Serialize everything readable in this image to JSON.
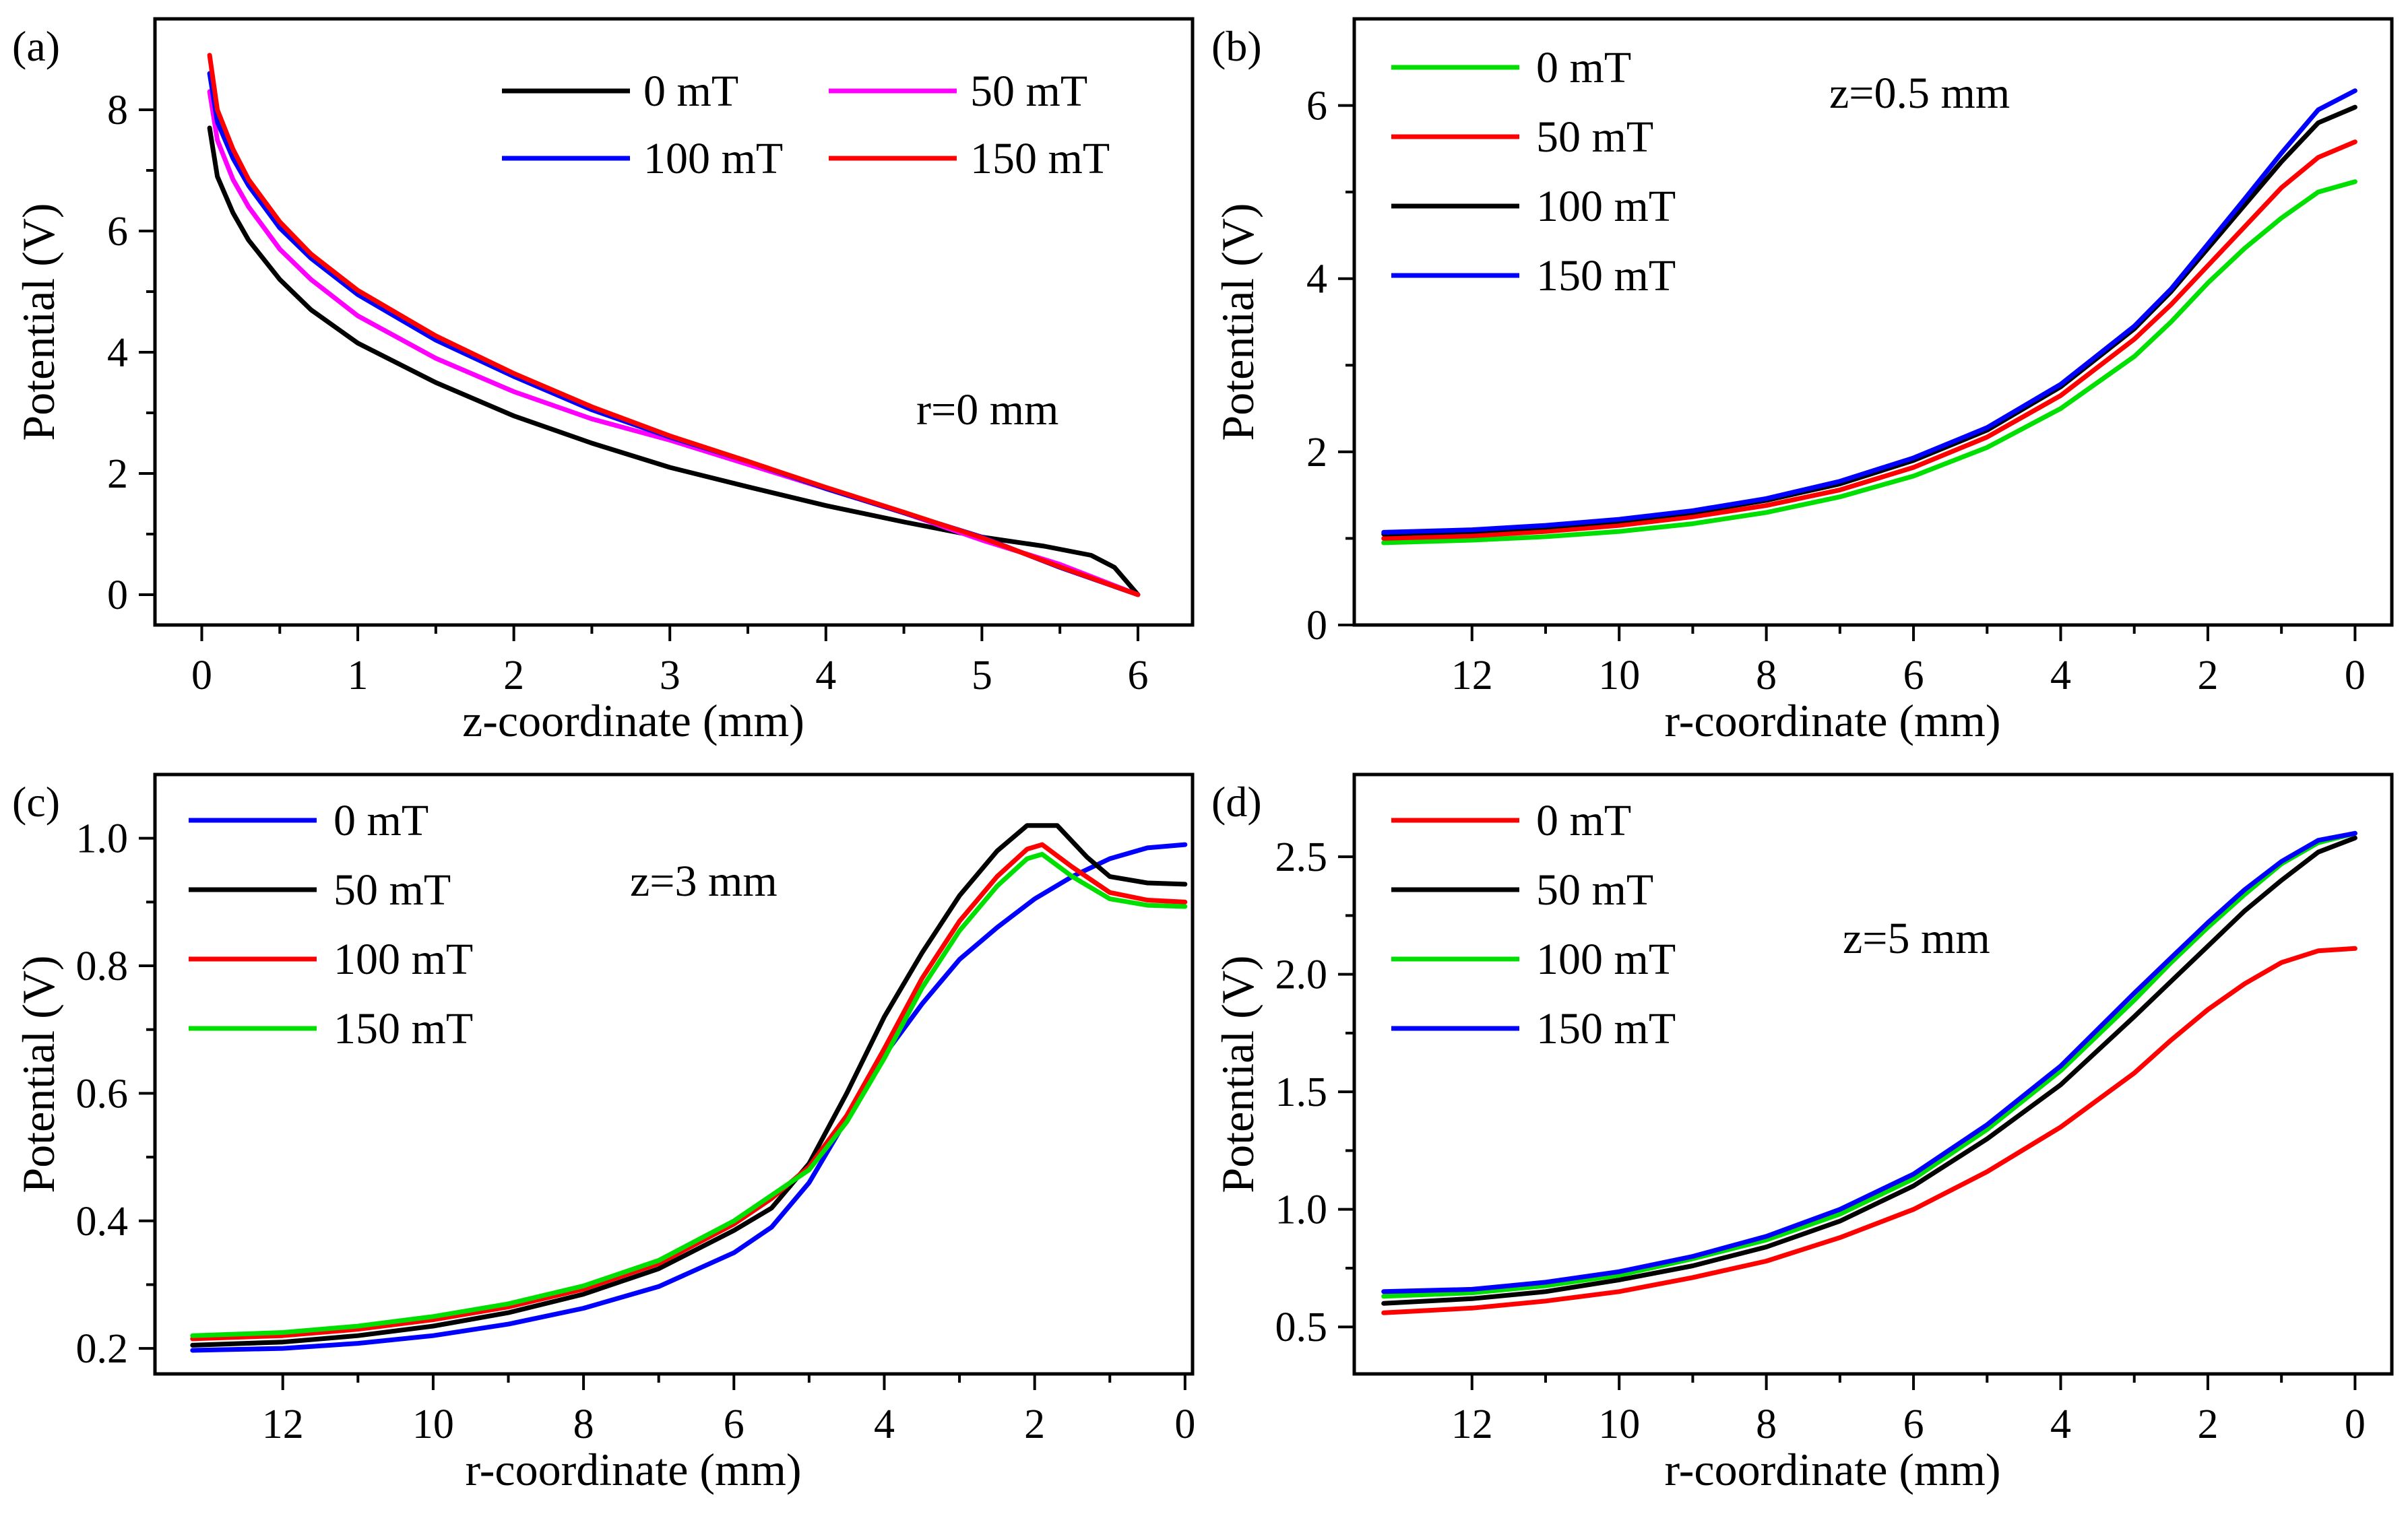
{
  "figure": {
    "colors": {
      "black": "#000000",
      "magenta": "#ff00ff",
      "blue": "#0000ff",
      "red": "#ff0000",
      "green": "#00e000"
    }
  },
  "chart_data": [
    {
      "id": "a",
      "panel_label": "(a)",
      "type": "line",
      "xlabel": "z-coordinate (mm)",
      "ylabel": "Potential (V)",
      "xlim": [
        -0.3,
        6.35
      ],
      "ylim": [
        -0.5,
        9.5
      ],
      "x_reversed": false,
      "xticks": [
        0,
        1,
        2,
        3,
        4,
        5,
        6
      ],
      "xtick_labels": [
        "0",
        "1",
        "2",
        "3",
        "4",
        "5",
        "6"
      ],
      "yticks": [
        0,
        2,
        4,
        6,
        8
      ],
      "ytick_labels": [
        "0",
        "2",
        "4",
        "6",
        "8"
      ],
      "annotation": "r=0 mm",
      "legend_layout": "top-right-2col",
      "series": [
        {
          "name": "0 mT",
          "color": "#000000",
          "x": [
            0.05,
            0.1,
            0.2,
            0.3,
            0.5,
            0.7,
            1,
            1.5,
            2,
            2.5,
            3,
            3.5,
            4,
            4.5,
            5,
            5.4,
            5.7,
            5.85,
            6.0
          ],
          "y": [
            7.7,
            6.9,
            6.3,
            5.85,
            5.2,
            4.7,
            4.15,
            3.5,
            2.95,
            2.5,
            2.1,
            1.78,
            1.47,
            1.2,
            0.95,
            0.8,
            0.65,
            0.45,
            0.0
          ]
        },
        {
          "name": "50 mT",
          "color": "#ff00ff",
          "x": [
            0.05,
            0.1,
            0.2,
            0.3,
            0.5,
            0.7,
            1,
            1.5,
            2,
            2.5,
            3,
            3.5,
            4,
            4.5,
            5,
            5.5,
            6.0
          ],
          "y": [
            8.3,
            7.5,
            6.85,
            6.4,
            5.7,
            5.2,
            4.6,
            3.9,
            3.35,
            2.9,
            2.55,
            2.15,
            1.75,
            1.35,
            0.9,
            0.5,
            0.0
          ]
        },
        {
          "name": "100 mT",
          "color": "#0000ff",
          "x": [
            0.05,
            0.1,
            0.2,
            0.3,
            0.5,
            0.7,
            1,
            1.5,
            2,
            2.5,
            3,
            3.5,
            4,
            4.5,
            5,
            5.5,
            6.0
          ],
          "y": [
            8.6,
            7.8,
            7.2,
            6.75,
            6.05,
            5.55,
            4.95,
            4.2,
            3.6,
            3.05,
            2.6,
            2.2,
            1.75,
            1.35,
            0.95,
            0.45,
            0.0
          ]
        },
        {
          "name": "150 mT",
          "color": "#ff0000",
          "x": [
            0.05,
            0.1,
            0.2,
            0.3,
            0.5,
            0.7,
            1,
            1.5,
            2,
            2.5,
            3,
            3.5,
            4,
            4.5,
            5,
            5.5,
            6.0
          ],
          "y": [
            8.9,
            8.0,
            7.35,
            6.85,
            6.15,
            5.62,
            5.02,
            4.27,
            3.65,
            3.1,
            2.62,
            2.2,
            1.77,
            1.36,
            0.94,
            0.46,
            0.0
          ]
        }
      ]
    },
    {
      "id": "b",
      "panel_label": "(b)",
      "type": "line",
      "xlabel": "r-coordinate (mm)",
      "ylabel": "Potential (V)",
      "xlim": [
        13.6,
        -0.5
      ],
      "ylim": [
        0,
        7.0
      ],
      "x_reversed": true,
      "xticks": [
        12,
        10,
        8,
        6,
        4,
        2,
        0
      ],
      "xtick_labels": [
        "12",
        "10",
        "8",
        "6",
        "4",
        "2",
        "0"
      ],
      "yticks": [
        0,
        2,
        4,
        6
      ],
      "ytick_labels": [
        "0",
        "2",
        "4",
        "6"
      ],
      "annotation": "z=0.5 mm",
      "legend_layout": "top-left-1col",
      "series": [
        {
          "name": "0 mT",
          "color": "#00e000",
          "x": [
            13.2,
            12,
            11,
            10,
            9,
            8,
            7,
            6,
            5,
            4,
            3,
            2.5,
            2,
            1.5,
            1,
            0.5,
            0
          ],
          "y": [
            0.95,
            0.98,
            1.02,
            1.08,
            1.17,
            1.3,
            1.48,
            1.72,
            2.05,
            2.5,
            3.1,
            3.5,
            3.95,
            4.35,
            4.7,
            5.0,
            5.12
          ]
        },
        {
          "name": "50 mT",
          "color": "#ff0000",
          "x": [
            13.2,
            12,
            11,
            10,
            9,
            8,
            7,
            6,
            5,
            4,
            3,
            2.5,
            2,
            1.5,
            1,
            0.5,
            0
          ],
          "y": [
            1.0,
            1.03,
            1.08,
            1.15,
            1.25,
            1.38,
            1.56,
            1.82,
            2.17,
            2.65,
            3.3,
            3.7,
            4.15,
            4.6,
            5.05,
            5.4,
            5.58
          ]
        },
        {
          "name": "100 mT",
          "color": "#000000",
          "x": [
            13.2,
            12,
            11,
            10,
            9,
            8,
            7,
            6,
            5,
            4,
            3,
            2.5,
            2,
            1.5,
            1,
            0.5,
            0
          ],
          "y": [
            1.05,
            1.08,
            1.13,
            1.2,
            1.3,
            1.44,
            1.63,
            1.9,
            2.25,
            2.75,
            3.42,
            3.85,
            4.35,
            4.85,
            5.35,
            5.8,
            5.98
          ]
        },
        {
          "name": "150 mT",
          "color": "#0000ff",
          "x": [
            13.2,
            12,
            11,
            10,
            9,
            8,
            7,
            6,
            5,
            4,
            3,
            2.5,
            2,
            1.5,
            1,
            0.5,
            0
          ],
          "y": [
            1.07,
            1.1,
            1.15,
            1.22,
            1.32,
            1.46,
            1.66,
            1.93,
            2.28,
            2.78,
            3.45,
            3.88,
            4.4,
            4.92,
            5.45,
            5.95,
            6.17
          ]
        }
      ]
    },
    {
      "id": "c",
      "panel_label": "(c)",
      "type": "line",
      "xlabel": "r-coordinate (mm)",
      "ylabel": "Potential (V)",
      "xlim": [
        13.7,
        -0.1
      ],
      "ylim": [
        0.16,
        1.1
      ],
      "x_reversed": true,
      "xticks": [
        12,
        10,
        8,
        6,
        4,
        2,
        0
      ],
      "xtick_labels": [
        "12",
        "10",
        "8",
        "6",
        "4",
        "2",
        "0"
      ],
      "yticks": [
        0.2,
        0.4,
        0.6,
        0.8,
        1.0
      ],
      "ytick_labels": [
        "0.2",
        "0.4",
        "0.6",
        "0.8",
        "1.0"
      ],
      "annotation": "z=3 mm",
      "legend_layout": "top-left-1col",
      "series": [
        {
          "name": "0 mT",
          "color": "#0000ff",
          "x": [
            13.2,
            12,
            11,
            10,
            9,
            8,
            7,
            6,
            5.5,
            5,
            4.5,
            4,
            3.5,
            3,
            2.5,
            2,
            1.5,
            1,
            0.5,
            0
          ],
          "y": [
            0.197,
            0.2,
            0.208,
            0.22,
            0.238,
            0.263,
            0.297,
            0.35,
            0.39,
            0.46,
            0.56,
            0.66,
            0.74,
            0.81,
            0.86,
            0.905,
            0.94,
            0.968,
            0.985,
            0.99
          ]
        },
        {
          "name": "50 mT",
          "color": "#000000",
          "x": [
            13.2,
            12,
            11,
            10,
            9,
            8,
            7,
            6,
            5.5,
            5,
            4.5,
            4,
            3.5,
            3,
            2.5,
            2.1,
            1.7,
            1.3,
            1,
            0.5,
            0
          ],
          "y": [
            0.205,
            0.21,
            0.22,
            0.235,
            0.256,
            0.285,
            0.325,
            0.385,
            0.42,
            0.49,
            0.6,
            0.72,
            0.82,
            0.91,
            0.98,
            1.02,
            1.02,
            0.97,
            0.94,
            0.93,
            0.928
          ]
        },
        {
          "name": "100 mT",
          "color": "#ff0000",
          "x": [
            13.2,
            12,
            11,
            10,
            9,
            8,
            7,
            6,
            5.5,
            5,
            4.5,
            4,
            3.5,
            3,
            2.5,
            2.1,
            1.9,
            1.5,
            1,
            0.5,
            0
          ],
          "y": [
            0.215,
            0.22,
            0.23,
            0.245,
            0.265,
            0.293,
            0.333,
            0.395,
            0.435,
            0.485,
            0.565,
            0.67,
            0.78,
            0.87,
            0.94,
            0.983,
            0.99,
            0.955,
            0.915,
            0.903,
            0.9
          ]
        },
        {
          "name": "150 mT",
          "color": "#00e000",
          "x": [
            13.2,
            12,
            11,
            10,
            9,
            8,
            7,
            6,
            5.5,
            5,
            4.5,
            4,
            3.5,
            3,
            2.5,
            2.1,
            1.9,
            1.5,
            1,
            0.5,
            0
          ],
          "y": [
            0.22,
            0.225,
            0.235,
            0.25,
            0.27,
            0.298,
            0.338,
            0.4,
            0.44,
            0.48,
            0.555,
            0.655,
            0.765,
            0.855,
            0.925,
            0.968,
            0.975,
            0.94,
            0.905,
            0.895,
            0.893
          ]
        }
      ]
    },
    {
      "id": "d",
      "panel_label": "(d)",
      "type": "line",
      "xlabel": "r-coordinate (mm)",
      "ylabel": "Potential (V)",
      "xlim": [
        13.6,
        -0.5
      ],
      "ylim": [
        0.3,
        2.85
      ],
      "x_reversed": true,
      "xticks": [
        12,
        10,
        8,
        6,
        4,
        2,
        0
      ],
      "xtick_labels": [
        "12",
        "10",
        "8",
        "6",
        "4",
        "2",
        "0"
      ],
      "yticks": [
        0.5,
        1.0,
        1.5,
        2.0,
        2.5
      ],
      "ytick_labels": [
        "0.5",
        "1.0",
        "1.5",
        "2.0",
        "2.5"
      ],
      "annotation": "z=5 mm",
      "legend_layout": "top-left-1col",
      "series": [
        {
          "name": "0 mT",
          "color": "#ff0000",
          "x": [
            13.2,
            12,
            11,
            10,
            9,
            8,
            7,
            6,
            5,
            4,
            3,
            2.5,
            2,
            1.5,
            1,
            0.5,
            0
          ],
          "y": [
            0.56,
            0.58,
            0.61,
            0.65,
            0.71,
            0.78,
            0.88,
            1.0,
            1.16,
            1.35,
            1.58,
            1.72,
            1.85,
            1.96,
            2.05,
            2.1,
            2.11
          ]
        },
        {
          "name": "50 mT",
          "color": "#000000",
          "x": [
            13.2,
            12,
            11,
            10,
            9,
            8,
            7,
            6,
            5,
            4,
            3,
            2.5,
            2,
            1.5,
            1,
            0.5,
            0
          ],
          "y": [
            0.6,
            0.62,
            0.65,
            0.7,
            0.76,
            0.84,
            0.95,
            1.1,
            1.3,
            1.53,
            1.82,
            1.97,
            2.12,
            2.27,
            2.4,
            2.52,
            2.58
          ]
        },
        {
          "name": "100 mT",
          "color": "#00e000",
          "x": [
            13.2,
            12,
            11,
            10,
            9,
            8,
            7,
            6,
            5,
            4,
            3,
            2.5,
            2,
            1.5,
            1,
            0.5,
            0
          ],
          "y": [
            0.63,
            0.645,
            0.675,
            0.72,
            0.79,
            0.87,
            0.98,
            1.13,
            1.34,
            1.59,
            1.89,
            2.05,
            2.2,
            2.34,
            2.47,
            2.56,
            2.6
          ]
        },
        {
          "name": "150 mT",
          "color": "#0000ff",
          "x": [
            13.2,
            12,
            11,
            10,
            9,
            8,
            7,
            6,
            5,
            4,
            3,
            2.5,
            2,
            1.5,
            1,
            0.5,
            0
          ],
          "y": [
            0.65,
            0.66,
            0.69,
            0.735,
            0.8,
            0.885,
            1.0,
            1.15,
            1.36,
            1.61,
            1.92,
            2.07,
            2.22,
            2.36,
            2.48,
            2.57,
            2.6
          ]
        }
      ]
    }
  ]
}
